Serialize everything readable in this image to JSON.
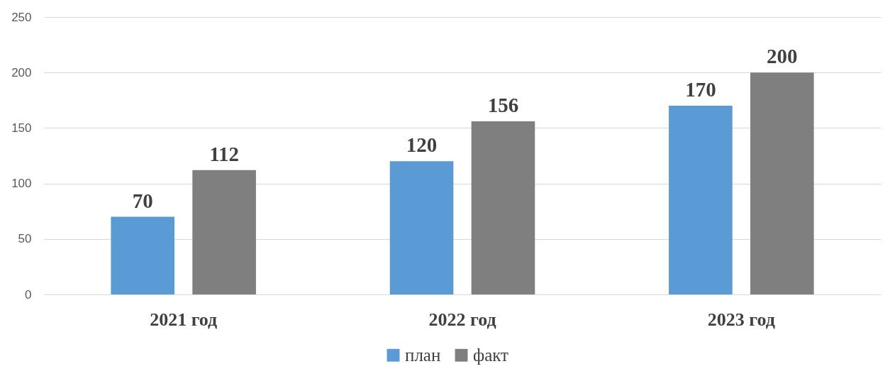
{
  "chart_data": {
    "type": "bar",
    "categories": [
      "2021 год",
      "2022 год",
      "2023 год"
    ],
    "series": [
      {
        "name": "план",
        "color": "#5b9bd5",
        "values": [
          70,
          120,
          170
        ]
      },
      {
        "name": "факт",
        "color": "#7f7f7f",
        "values": [
          112,
          156,
          200
        ]
      }
    ],
    "ylim": [
      0,
      250
    ],
    "yticks": [
      0,
      50,
      100,
      150,
      200,
      250
    ],
    "grid": "y",
    "legend": "bottom",
    "data_labels": true
  }
}
